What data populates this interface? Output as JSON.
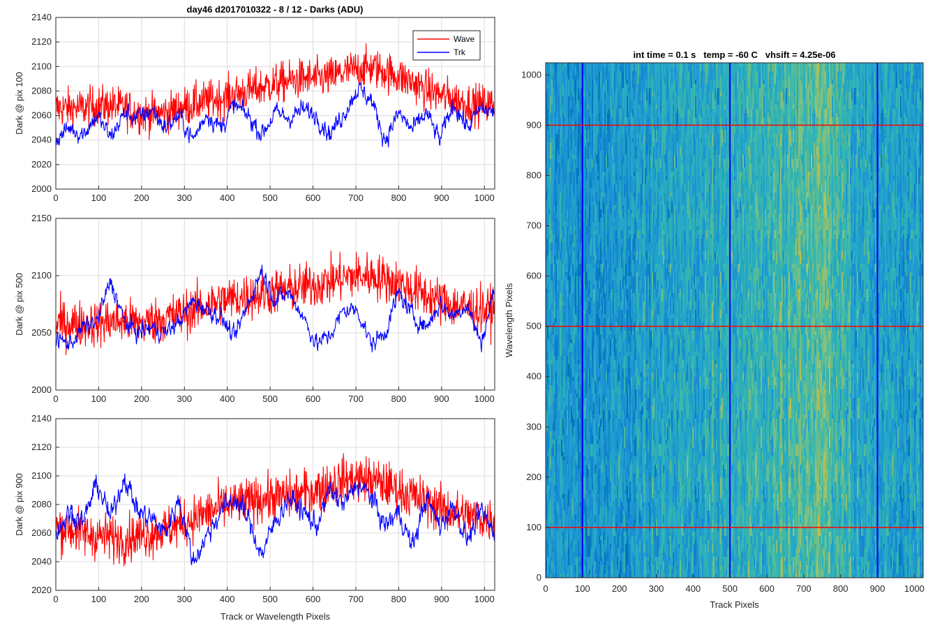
{
  "figure": {
    "title": "day46 d2017010322 - 8 / 12 - Darks (ADU)",
    "shared_xlabel": "Track or Wavelength Pixels"
  },
  "chart_data": [
    {
      "type": "line",
      "ylabel": "Dark @ pix 100",
      "xlim": [
        0,
        1024
      ],
      "ylim": [
        2000,
        2140
      ],
      "xticks": [
        0,
        100,
        200,
        300,
        400,
        500,
        600,
        700,
        800,
        900,
        1000
      ],
      "yticks": [
        2000,
        2020,
        2040,
        2060,
        2080,
        2100,
        2120,
        2140
      ],
      "grid": true,
      "legend": {
        "placement": "top-right",
        "entries": [
          "Wave",
          "Trk"
        ]
      },
      "series": [
        {
          "name": "Wave",
          "color": "#ff0000",
          "x": [
            0,
            32,
            64,
            96,
            128,
            160,
            192,
            224,
            256,
            288,
            320,
            352,
            384,
            416,
            448,
            480,
            512,
            544,
            576,
            608,
            640,
            672,
            704,
            736,
            768,
            800,
            832,
            864,
            896,
            928,
            960,
            992,
            1023
          ],
          "values": [
            2066,
            2066,
            2066,
            2068,
            2068,
            2066,
            2062,
            2061,
            2062,
            2066,
            2069,
            2072,
            2074,
            2077,
            2080,
            2083,
            2086,
            2088,
            2090,
            2090,
            2091,
            2095,
            2098,
            2099,
            2096,
            2092,
            2087,
            2081,
            2077,
            2073,
            2070,
            2069,
            2069
          ]
        },
        {
          "name": "Trk",
          "color": "#0000ff",
          "x": [
            0,
            32,
            64,
            96,
            128,
            160,
            192,
            224,
            256,
            288,
            320,
            352,
            384,
            416,
            448,
            480,
            512,
            544,
            576,
            608,
            640,
            672,
            704,
            736,
            768,
            800,
            832,
            864,
            896,
            928,
            960,
            992,
            1023
          ],
          "values": [
            2040,
            2050,
            2045,
            2060,
            2042,
            2062,
            2058,
            2065,
            2050,
            2060,
            2040,
            2062,
            2050,
            2068,
            2060,
            2045,
            2062,
            2058,
            2065,
            2060,
            2045,
            2062,
            2082,
            2073,
            2040,
            2062,
            2048,
            2062,
            2040,
            2070,
            2050,
            2066,
            2062
          ]
        }
      ]
    },
    {
      "type": "line",
      "ylabel": "Dark @ pix 500",
      "xlim": [
        0,
        1024
      ],
      "ylim": [
        2000,
        2150
      ],
      "xticks": [
        0,
        100,
        200,
        300,
        400,
        500,
        600,
        700,
        800,
        900,
        1000
      ],
      "yticks": [
        2000,
        2050,
        2100,
        2150
      ],
      "grid": true,
      "series": [
        {
          "name": "Wave",
          "color": "#ff0000",
          "x": [
            0,
            32,
            64,
            96,
            128,
            160,
            192,
            224,
            256,
            288,
            320,
            352,
            384,
            416,
            448,
            480,
            512,
            544,
            576,
            608,
            640,
            672,
            704,
            736,
            768,
            800,
            832,
            864,
            896,
            928,
            960,
            992,
            1023
          ],
          "values": [
            2058,
            2058,
            2058,
            2058,
            2060,
            2060,
            2058,
            2060,
            2063,
            2066,
            2070,
            2074,
            2078,
            2080,
            2082,
            2084,
            2086,
            2088,
            2090,
            2092,
            2095,
            2098,
            2100,
            2100,
            2097,
            2093,
            2088,
            2083,
            2078,
            2074,
            2072,
            2070,
            2070
          ]
        },
        {
          "name": "Trk",
          "color": "#0000ff",
          "x": [
            0,
            32,
            64,
            96,
            128,
            160,
            192,
            224,
            256,
            288,
            320,
            352,
            384,
            416,
            448,
            480,
            512,
            544,
            576,
            608,
            640,
            672,
            704,
            736,
            768,
            800,
            832,
            864,
            896,
            928,
            960,
            992,
            1023
          ],
          "values": [
            2045,
            2040,
            2055,
            2060,
            2095,
            2060,
            2050,
            2055,
            2050,
            2060,
            2078,
            2070,
            2065,
            2045,
            2075,
            2105,
            2078,
            2085,
            2065,
            2040,
            2048,
            2070,
            2070,
            2040,
            2050,
            2085,
            2065,
            2055,
            2075,
            2065,
            2075,
            2040,
            2088
          ]
        }
      ]
    },
    {
      "type": "line",
      "ylabel": "Dark @ pix 900",
      "xlabel": "Track or Wavelength Pixels",
      "xlim": [
        0,
        1024
      ],
      "ylim": [
        2020,
        2140
      ],
      "xticks": [
        0,
        100,
        200,
        300,
        400,
        500,
        600,
        700,
        800,
        900,
        1000
      ],
      "yticks": [
        2020,
        2040,
        2060,
        2080,
        2100,
        2120,
        2140
      ],
      "grid": true,
      "series": [
        {
          "name": "Wave",
          "color": "#ff0000",
          "x": [
            0,
            32,
            64,
            96,
            128,
            160,
            192,
            224,
            256,
            288,
            320,
            352,
            384,
            416,
            448,
            480,
            512,
            544,
            576,
            608,
            640,
            672,
            704,
            736,
            768,
            800,
            832,
            864,
            896,
            928,
            960,
            992,
            1023
          ],
          "values": [
            2064,
            2063,
            2060,
            2058,
            2057,
            2056,
            2058,
            2060,
            2062,
            2066,
            2070,
            2074,
            2078,
            2080,
            2082,
            2084,
            2085,
            2086,
            2088,
            2090,
            2094,
            2097,
            2098,
            2097,
            2094,
            2090,
            2086,
            2082,
            2078,
            2074,
            2072,
            2070,
            2070
          ]
        },
        {
          "name": "Trk",
          "color": "#0000ff",
          "x": [
            0,
            32,
            64,
            96,
            128,
            160,
            192,
            224,
            256,
            288,
            320,
            352,
            384,
            416,
            448,
            480,
            512,
            544,
            576,
            608,
            640,
            672,
            704,
            736,
            768,
            800,
            832,
            864,
            896,
            928,
            960,
            992,
            1023
          ],
          "values": [
            2060,
            2075,
            2068,
            2095,
            2070,
            2100,
            2075,
            2070,
            2060,
            2085,
            2040,
            2058,
            2075,
            2085,
            2070,
            2045,
            2068,
            2085,
            2075,
            2065,
            2090,
            2080,
            2095,
            2085,
            2065,
            2075,
            2050,
            2085,
            2065,
            2080,
            2055,
            2075,
            2060
          ]
        }
      ]
    },
    {
      "type": "heatmap",
      "title": "int time = 0.1 s   temp = -60 C   vhsift = 4.25e-06",
      "xlabel": "Track Pixels",
      "ylabel": "Wavelength Pixels",
      "xlim": [
        0,
        1024
      ],
      "ylim": [
        0,
        1024
      ],
      "xticks": [
        0,
        100,
        200,
        300,
        400,
        500,
        600,
        700,
        800,
        900,
        1000
      ],
      "yticks": [
        0,
        100,
        200,
        300,
        400,
        500,
        600,
        700,
        800,
        900,
        1000
      ],
      "colormap": [
        "#0072bd",
        "#1a8cd4",
        "#23a8c8",
        "#3cb8a8",
        "#7fc080",
        "#c6c04a"
      ],
      "column_brightness": {
        "x": [
          0,
          100,
          200,
          300,
          400,
          500,
          600,
          700,
          760,
          850,
          1024
        ],
        "level": [
          0.3,
          0.25,
          0.3,
          0.38,
          0.42,
          0.48,
          0.55,
          0.65,
          0.72,
          0.4,
          0.35
        ]
      },
      "vertical_lines": {
        "color": "#0000ff",
        "x": [
          100,
          500,
          900
        ]
      },
      "horizontal_lines": {
        "color": "#ff0000",
        "y": [
          100,
          500,
          900
        ]
      }
    }
  ]
}
